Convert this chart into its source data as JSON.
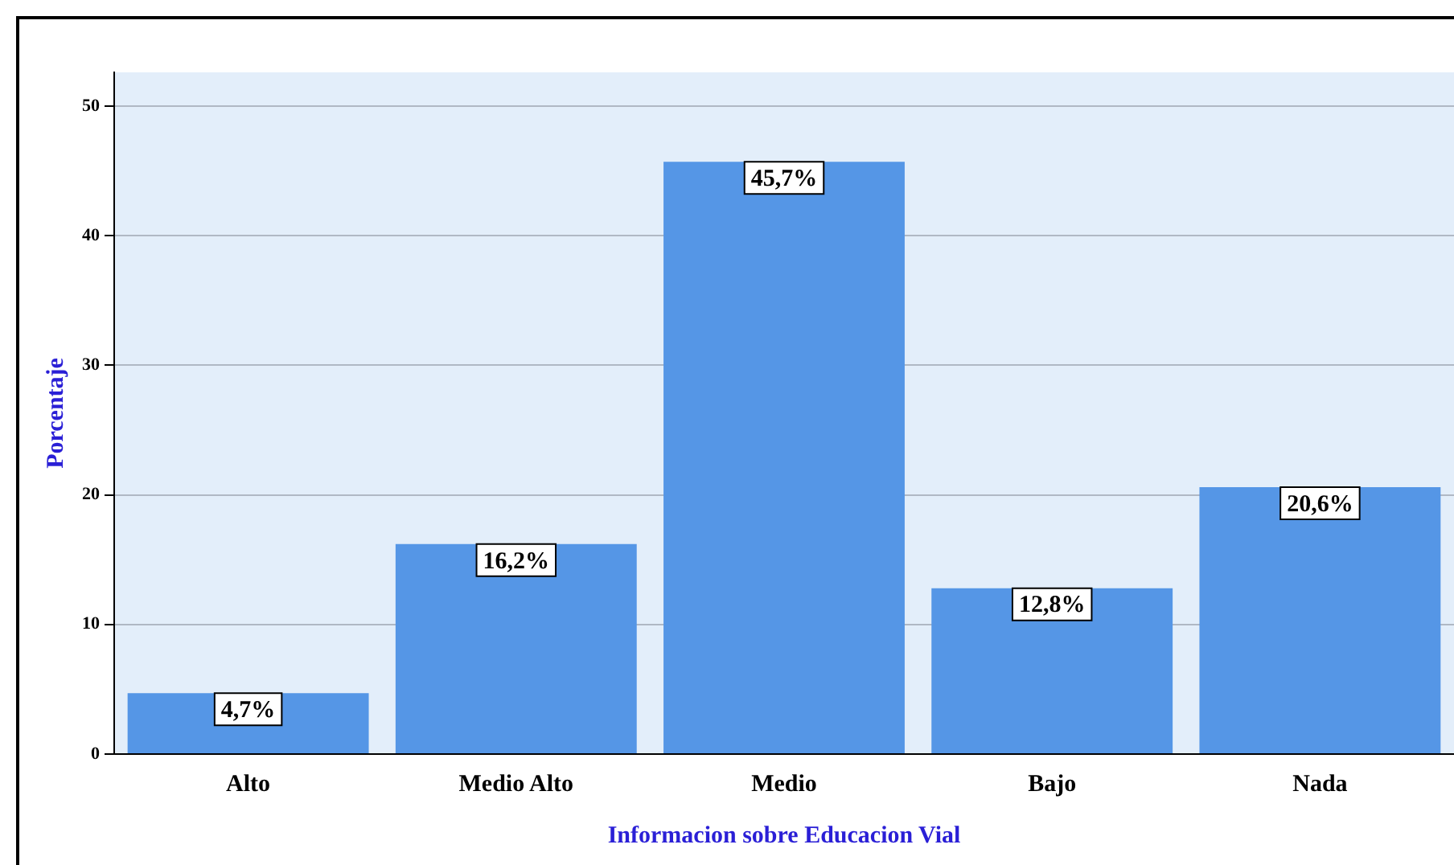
{
  "chart_data": {
    "type": "bar",
    "xlabel": "Informacion sobre Educacion Vial",
    "ylabel": "Porcentaje",
    "categories": [
      "Alto",
      "Medio Alto",
      "Medio",
      "Bajo",
      "Nada"
    ],
    "values": [
      4.7,
      16.2,
      45.7,
      12.8,
      20.6
    ],
    "color": "#5596e6",
    "value_labels": [
      "4,7%",
      "16,2%",
      "45,7%",
      "12,8%",
      "20,6%"
    ],
    "ylim": [
      0,
      52.6
    ],
    "yticks": [
      0,
      10,
      20,
      30,
      40,
      50
    ],
    "grid": "y",
    "legend": false
  }
}
